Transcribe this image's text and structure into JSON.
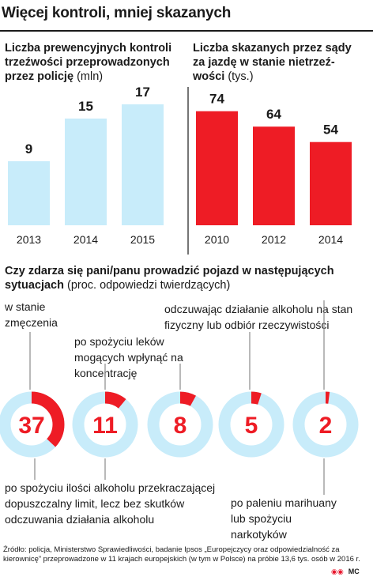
{
  "title": "Więcej kontroli, mniej skazanych",
  "left_chart": {
    "title": "Liczba prewencyjnych kontroli trzeźwości przeprowadzonych przez policję",
    "unit": "(mln)",
    "color": "#c8ecfa"
  },
  "right_chart": {
    "title": "Liczba skazanych przez sądy za jazdę w stanie nietrzeź-wości",
    "unit": "(tys.)",
    "color": "#ee1c25"
  },
  "question": {
    "title": "Czy zdarza się pani/panu prowadzić pojazd w następujących sytuacjach",
    "unit": "(proc. odpowiedzi twierdzących)"
  },
  "labels": {
    "zmeczenie": "w stanie zmęczenia",
    "leki": "po spożyciu leków mogących wpłynąć na koncentrację",
    "alkohol_stan": "odczuwając działanie alkoholu na stan fizyczny lub odbiór rzeczywistości",
    "alkohol_limit": "po spożyciu ilości alkoholu przekraczającej dopuszczalny limit, lecz bez skutków odczuwania działania alkoholu",
    "marihuana": "po paleniu marihuany lub spożyciu narkotyków"
  },
  "source": "Źródło: policja, Ministerstwo Sprawiedliwości, badanie Ipsos „Europejczycy oraz odpowiedzialność za kierownicę” przeprowadzone w 11 krajach europejskich (w tym w Polsce) na próbie 13,6 tys. osób w 2016 r.",
  "logo_text": "MC",
  "colors": {
    "ring": "#c8ecfa",
    "accent": "#ee1c25",
    "text": "#1a1a1a"
  },
  "chart_data": [
    {
      "type": "bar",
      "categories": [
        "2013",
        "2014",
        "2015"
      ],
      "values": [
        9,
        15,
        17
      ],
      "title": "Liczba prewencyjnych kontroli trzeźwości przeprowadzonych przez policję",
      "ylabel": "(mln)"
    },
    {
      "type": "bar",
      "categories": [
        "2010",
        "2012",
        "2014"
      ],
      "values": [
        74,
        64,
        54
      ],
      "title": "Liczba skazanych przez sądy za jazdę w stanie nietrzeź-wości",
      "ylabel": "(tys.)"
    },
    {
      "type": "pie",
      "title": "Czy zdarza się pani/panu prowadzić pojazd w następujących sytuacjach",
      "ylabel": "(proc. odpowiedzi twierdzących)",
      "categories": [
        "w stanie zmęczenia",
        "po spożyciu ilości alkoholu przekraczającej dopuszczalny limit, lecz bez skutków odczuwania działania alkoholu",
        "po spożyciu leków mogących wpłynąć na koncentrację",
        "odczuwając działanie alkoholu na stan fizyczny lub odbiór rzeczywistości",
        "po paleniu marihuany lub spożyciu narkotyków"
      ],
      "values": [
        37,
        11,
        8,
        5,
        2
      ]
    }
  ]
}
